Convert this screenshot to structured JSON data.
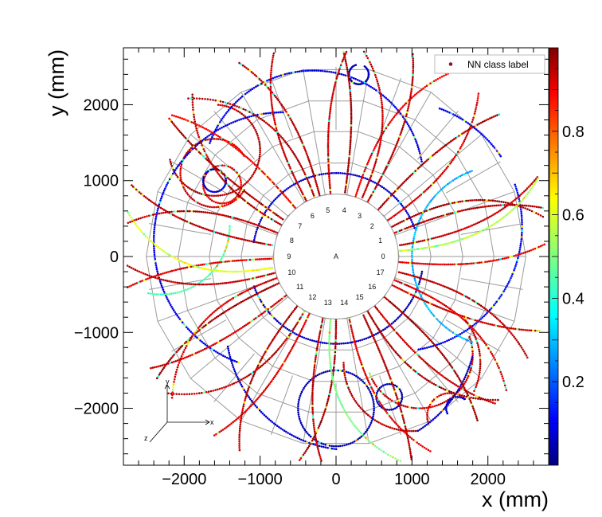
{
  "chart_data": {
    "type": "scatter",
    "xlabel": "x (mm)",
    "ylabel": "y (mm)",
    "xlim": [
      -2800,
      2800
    ],
    "ylim": [
      -2750,
      2750
    ],
    "xticks": [
      -2000,
      -1000,
      0,
      1000,
      2000
    ],
    "yticks": [
      -2000,
      -1000,
      0,
      1000,
      2000
    ],
    "xtick_labels": [
      "−2000",
      "−1000",
      "0",
      "1000",
      "2000"
    ],
    "ytick_labels": [
      "−2000",
      "−1000",
      "0",
      "1000",
      "2000"
    ],
    "grid": false,
    "legend": {
      "position": "top-right",
      "entries": [
        {
          "label": "NN class label",
          "color": "#8b1a1a"
        }
      ]
    },
    "colorbar": {
      "range": [
        0,
        1
      ],
      "ticks": [
        0.2,
        0.4,
        0.6,
        0.8
      ],
      "tick_labels": [
        "0.2",
        "0.4",
        "0.6",
        "0.8"
      ],
      "colormap": "jet"
    },
    "detector": {
      "outer_radius_mm": 2500,
      "inner_radius_mm": 830,
      "sectors": 18,
      "rings_mm": [
        830,
        1250,
        1670,
        2080,
        2500
      ],
      "sector_labels": [
        "0",
        "1",
        "2",
        "3",
        "4",
        "5",
        "6",
        "7",
        "8",
        "9",
        "10",
        "11",
        "12",
        "13",
        "14",
        "15",
        "16",
        "17"
      ],
      "center_label": "A"
    },
    "tracks": [
      {
        "kind": "arc",
        "cx": -1600,
        "cy": 1400,
        "r": 600,
        "from": 0,
        "to": 360,
        "score": 0.95
      },
      {
        "kind": "arc",
        "cx": -1600,
        "cy": 1100,
        "r": 450,
        "from": 30,
        "to": 330,
        "score": 0.92
      },
      {
        "kind": "arc",
        "cx": -1500,
        "cy": 950,
        "r": 250,
        "from": 0,
        "to": 360,
        "score": 0.9
      },
      {
        "kind": "arc",
        "cx": -1600,
        "cy": 1000,
        "r": 150,
        "from": 0,
        "to": 360,
        "score": 0.07
      },
      {
        "kind": "arc",
        "cx": 1000,
        "cy": -1400,
        "r": 900,
        "from": 180,
        "to": 400,
        "score": 0.94
      },
      {
        "kind": "arc",
        "cx": 1100,
        "cy": -1300,
        "r": 700,
        "from": 200,
        "to": 380,
        "score": 0.93
      },
      {
        "kind": "arc",
        "cx": 1500,
        "cy": -2100,
        "r": 300,
        "from": 0,
        "to": 360,
        "score": 0.9
      },
      {
        "kind": "arc",
        "cx": 1600,
        "cy": -2000,
        "r": 150,
        "from": 0,
        "to": 360,
        "score": 0.08
      },
      {
        "kind": "arc",
        "cx": 0,
        "cy": -2000,
        "r": 500,
        "from": 0,
        "to": 360,
        "score": 0.05
      },
      {
        "kind": "arc",
        "cx": 0,
        "cy": 0,
        "r": 1150,
        "from": 200,
        "to": 350,
        "score": 0.06
      },
      {
        "kind": "arc",
        "cx": 0,
        "cy": 0,
        "r": 1100,
        "from": 20,
        "to": 170,
        "score": 0.08
      },
      {
        "kind": "arc",
        "cx": -700,
        "cy": 200,
        "r": 1700,
        "from": 90,
        "to": 250,
        "score": 0.1
      },
      {
        "kind": "arc",
        "cx": 800,
        "cy": 400,
        "r": 1650,
        "from": 280,
        "to": 430,
        "score": 0.12
      },
      {
        "kind": "arc",
        "cx": 200,
        "cy": -900,
        "r": 1650,
        "from": 190,
        "to": 345,
        "score": 0.07
      },
      {
        "kind": "arc",
        "cx": -300,
        "cy": 1000,
        "r": 1450,
        "from": 10,
        "to": 160,
        "score": 0.1
      },
      {
        "kind": "arc",
        "cx": 300,
        "cy": 2400,
        "r": 130,
        "from": 0,
        "to": 360,
        "score": 0.05
      },
      {
        "kind": "arc",
        "cx": 700,
        "cy": -1850,
        "r": 170,
        "from": 0,
        "to": 360,
        "score": 0.05
      },
      {
        "kind": "arc",
        "cx": -2300,
        "cy": 400,
        "r": 900,
        "from": 250,
        "to": 360,
        "score": 0.45
      },
      {
        "kind": "arc",
        "cx": 2200,
        "cy": 0,
        "r": 1200,
        "from": 110,
        "to": 250,
        "score": 0.3
      },
      {
        "kind": "ray",
        "angle": 10,
        "curv": 0.25,
        "score": 0.93
      },
      {
        "kind": "ray",
        "angle": 22,
        "curv": -0.2,
        "score": 0.95
      },
      {
        "kind": "ray",
        "angle": 35,
        "curv": 0.3,
        "score": 0.91
      },
      {
        "kind": "ray",
        "angle": 48,
        "curv": -0.15,
        "score": 0.96
      },
      {
        "kind": "ray",
        "angle": 60,
        "curv": 0.2,
        "score": 0.94
      },
      {
        "kind": "ray",
        "angle": 72,
        "curv": -0.3,
        "score": 0.9
      },
      {
        "kind": "ray",
        "angle": 82,
        "curv": 0.15,
        "score": 0.97
      },
      {
        "kind": "ray",
        "angle": 95,
        "curv": -0.2,
        "score": 0.92
      },
      {
        "kind": "ray",
        "angle": 105,
        "curv": 0.25,
        "score": 0.95
      },
      {
        "kind": "ray",
        "angle": 118,
        "curv": -0.25,
        "score": 0.93
      },
      {
        "kind": "ray",
        "angle": 130,
        "curv": 0.2,
        "score": 0.88
      },
      {
        "kind": "ray",
        "angle": 145,
        "curv": -0.1,
        "score": 0.96
      },
      {
        "kind": "ray",
        "angle": 158,
        "curv": 0.3,
        "score": 0.94
      },
      {
        "kind": "ray",
        "angle": 170,
        "curv": -0.2,
        "score": 0.95
      },
      {
        "kind": "ray",
        "angle": 182,
        "curv": 0.15,
        "score": 0.9
      },
      {
        "kind": "ray",
        "angle": 195,
        "curv": -0.3,
        "score": 0.93
      },
      {
        "kind": "ray",
        "angle": 205,
        "curv": 0.2,
        "score": 0.97
      },
      {
        "kind": "ray",
        "angle": 218,
        "curv": -0.15,
        "score": 0.92
      },
      {
        "kind": "ray",
        "angle": 232,
        "curv": 0.25,
        "score": 0.95
      },
      {
        "kind": "ray",
        "angle": 245,
        "curv": -0.2,
        "score": 0.9
      },
      {
        "kind": "ray",
        "angle": 258,
        "curv": 0.2,
        "score": 0.94
      },
      {
        "kind": "ray",
        "angle": 270,
        "curv": -0.25,
        "score": 0.96
      },
      {
        "kind": "ray",
        "angle": 282,
        "curv": 0.3,
        "score": 0.91
      },
      {
        "kind": "ray",
        "angle": 295,
        "curv": -0.1,
        "score": 0.95
      },
      {
        "kind": "ray",
        "angle": 308,
        "curv": 0.2,
        "score": 0.93
      },
      {
        "kind": "ray",
        "angle": 320,
        "curv": -0.2,
        "score": 0.97
      },
      {
        "kind": "ray",
        "angle": 333,
        "curv": 0.15,
        "score": 0.92
      },
      {
        "kind": "ray",
        "angle": 346,
        "curv": -0.3,
        "score": 0.94
      },
      {
        "kind": "ray",
        "angle": 355,
        "curv": 0.2,
        "score": 0.9
      },
      {
        "kind": "ray",
        "angle": 28,
        "curv": -0.4,
        "score": 0.96
      },
      {
        "kind": "ray",
        "angle": 66,
        "curv": 0.4,
        "score": 0.93
      },
      {
        "kind": "ray",
        "angle": 150,
        "curv": -0.4,
        "score": 0.95
      },
      {
        "kind": "ray",
        "angle": 200,
        "curv": 0.45,
        "score": 0.92
      },
      {
        "kind": "ray",
        "angle": 240,
        "curv": -0.45,
        "score": 0.94
      },
      {
        "kind": "ray",
        "angle": 300,
        "curv": 0.4,
        "score": 0.96
      },
      {
        "kind": "ray",
        "angle": 338,
        "curv": -0.35,
        "score": 0.91
      },
      {
        "kind": "ray",
        "angle": 110,
        "curv": 0.5,
        "score": 0.95
      },
      {
        "kind": "ray",
        "angle": 5,
        "curv": 0.35,
        "score": 0.55
      },
      {
        "kind": "ray",
        "angle": 190,
        "curv": -0.5,
        "score": 0.6
      },
      {
        "kind": "ray",
        "angle": 265,
        "curv": 0.5,
        "score": 0.5
      }
    ]
  },
  "triad": {
    "x": "x",
    "y": "y",
    "z": "z"
  }
}
